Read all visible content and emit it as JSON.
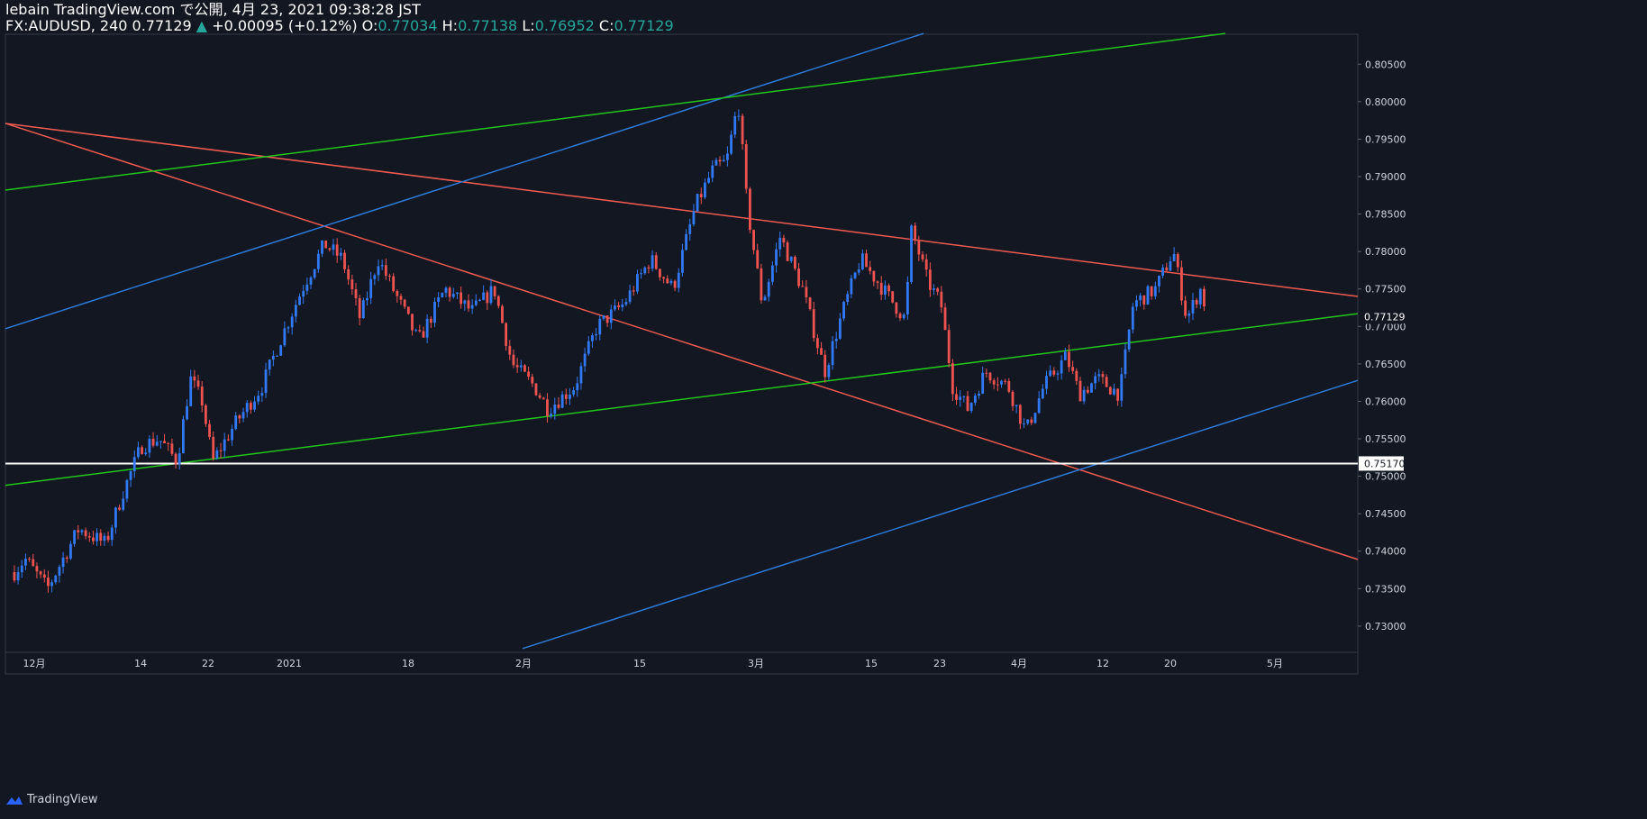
{
  "header": {
    "publisher": "lebain TradingView.com で公開, 4月 23, 2021 09:38:28 JST",
    "symbol_line": "FX:AUDUSD, 240",
    "last_price": "0.77129",
    "change": "+0.00095 (+0.12%)",
    "open_label": "O:",
    "open_value": "0.77034",
    "high_label": "H:",
    "high_value": "0.77138",
    "low_label": "L:",
    "low_value": "0.76952",
    "close_label": "C:",
    "close_value": "0.77129"
  },
  "footer": {
    "logo_text": "TradingView"
  },
  "colors": {
    "background": "#131722",
    "up": "#3179f5",
    "down": "#ef5350",
    "trend_red": "#f05a50",
    "trend_blue": "#2d7ad6",
    "trend_green": "#22c61b",
    "horizontal_line": "#ffffff"
  },
  "chart_data": {
    "type": "candlestick",
    "title": "FX:AUDUSD, 240",
    "x_tick_labels": [
      "12月",
      "14",
      "22",
      "2021",
      "18",
      "2月",
      "15",
      "3月",
      "15",
      "23",
      "4月",
      "12",
      "20",
      "5月"
    ],
    "y_tick_labels": [
      "0.80500",
      "0.80000",
      "0.79500",
      "0.79000",
      "0.78500",
      "0.78000",
      "0.77500",
      "0.77000",
      "0.76500",
      "0.76000",
      "0.75500",
      "0.75000",
      "0.74500",
      "0.74000",
      "0.73500",
      "0.73000"
    ],
    "ylim": [
      0.7265,
      0.809
    ],
    "last_price_label": "0.77129",
    "horizontal_level_label": "0.75170",
    "horizontal_level": 0.7517,
    "price_path": [
      [
        0,
        0.736
      ],
      [
        20,
        0.739
      ],
      [
        45,
        0.735
      ],
      [
        80,
        0.743
      ],
      [
        110,
        0.741
      ],
      [
        130,
        0.748
      ],
      [
        150,
        0.754
      ],
      [
        170,
        0.755
      ],
      [
        190,
        0.752
      ],
      [
        205,
        0.763
      ],
      [
        218,
        0.76
      ],
      [
        230,
        0.752
      ],
      [
        255,
        0.757
      ],
      [
        285,
        0.762
      ],
      [
        305,
        0.768
      ],
      [
        330,
        0.775
      ],
      [
        355,
        0.781
      ],
      [
        375,
        0.779
      ],
      [
        395,
        0.771
      ],
      [
        415,
        0.779
      ],
      [
        440,
        0.773
      ],
      [
        460,
        0.768
      ],
      [
        490,
        0.775
      ],
      [
        520,
        0.772
      ],
      [
        545,
        0.775
      ],
      [
        565,
        0.765
      ],
      [
        590,
        0.762
      ],
      [
        605,
        0.759
      ],
      [
        635,
        0.762
      ],
      [
        660,
        0.77
      ],
      [
        690,
        0.773
      ],
      [
        720,
        0.779
      ],
      [
        745,
        0.775
      ],
      [
        770,
        0.786
      ],
      [
        790,
        0.791
      ],
      [
        805,
        0.792
      ],
      [
        818,
        0.8
      ],
      [
        828,
        0.786
      ],
      [
        845,
        0.773
      ],
      [
        865,
        0.782
      ],
      [
        890,
        0.775
      ],
      [
        915,
        0.764
      ],
      [
        935,
        0.772
      ],
      [
        955,
        0.779
      ],
      [
        980,
        0.775
      ],
      [
        1005,
        0.771
      ],
      [
        1012,
        0.783
      ],
      [
        1030,
        0.776
      ],
      [
        1045,
        0.773
      ],
      [
        1058,
        0.762
      ],
      [
        1075,
        0.759
      ],
      [
        1095,
        0.764
      ],
      [
        1120,
        0.762
      ],
      [
        1140,
        0.756
      ],
      [
        1160,
        0.762
      ],
      [
        1185,
        0.766
      ],
      [
        1200,
        0.761
      ],
      [
        1220,
        0.763
      ],
      [
        1245,
        0.761
      ],
      [
        1260,
        0.773
      ],
      [
        1285,
        0.775
      ],
      [
        1305,
        0.78
      ],
      [
        1320,
        0.771
      ],
      [
        1335,
        0.775
      ],
      [
        1345,
        0.771
      ]
    ],
    "trendlines": [
      {
        "color": "trend_red",
        "points": [
          [
            0.5,
            0.7971
          ],
          [
            1507,
            0.774
          ]
        ]
      },
      {
        "color": "trend_red",
        "points": [
          [
            0.5,
            0.7971
          ],
          [
            1507,
            0.7389
          ]
        ]
      },
      {
        "color": "trend_blue",
        "points": [
          [
            0.5,
            0.7697
          ],
          [
            1025,
            0.8091
          ]
        ]
      },
      {
        "color": "trend_blue",
        "points": [
          [
            580,
            0.727
          ],
          [
            1507,
            0.7628
          ]
        ]
      },
      {
        "color": "trend_green",
        "points": [
          [
            0.5,
            0.7882
          ],
          [
            1360,
            0.8091
          ]
        ]
      },
      {
        "color": "trend_green",
        "points": [
          [
            0.5,
            0.7488
          ],
          [
            1507,
            0.7717
          ]
        ]
      }
    ]
  }
}
